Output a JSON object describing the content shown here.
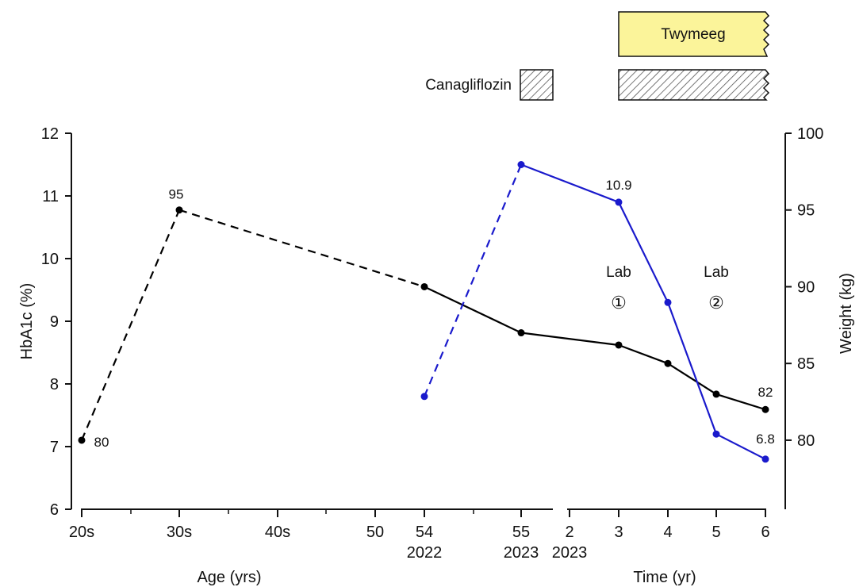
{
  "chart_data": {
    "type": "line",
    "left_axis": {
      "label": "HbA1c (%)",
      "range": [
        6,
        12
      ],
      "ticks": [
        "6",
        "7",
        "8",
        "9",
        "10",
        "11",
        "12"
      ]
    },
    "right_axis": {
      "label": "Weight (kg)",
      "range": [
        75.5,
        100
      ],
      "ticks": [
        "80",
        "85",
        "90",
        "95",
        "100"
      ]
    },
    "x_axis": {
      "segments": [
        {
          "title": "Age (yrs)",
          "title_color": "#1a1aa6",
          "ticks": [
            "20s",
            "30s",
            "40s",
            "50",
            "54",
            "55"
          ],
          "tick_sublabels": {
            "54": "2022",
            "55": "2023"
          }
        },
        {
          "title": "Time (yr)",
          "title_color": "#1a1aa6",
          "ticks": [
            "2",
            "3",
            "4",
            "5",
            "6"
          ],
          "tick_sublabels": {
            "2": "2023"
          }
        }
      ]
    },
    "series": [
      {
        "color": "#000000",
        "axis": "right",
        "points": [
          {
            "x": "20s",
            "y": 80,
            "label": "80",
            "style": "dashed"
          },
          {
            "x": "30s",
            "y": 95,
            "label": "95",
            "style": "dashed"
          },
          {
            "x": "54",
            "y": 90,
            "style": "solid"
          },
          {
            "x": "55",
            "y": 87
          },
          {
            "x": "3",
            "y": 86.2
          },
          {
            "x": "4",
            "y": 85
          },
          {
            "x": "5",
            "y": 83
          },
          {
            "x": "6",
            "y": 82,
            "label": "82"
          }
        ]
      },
      {
        "color": "#1a1acc",
        "axis": "left",
        "points": [
          {
            "x": "54",
            "y": 7.8,
            "style": "dashed"
          },
          {
            "x": "55",
            "y": 11.5,
            "style": "solid"
          },
          {
            "x": "3",
            "y": 10.9,
            "label": "10.9"
          },
          {
            "x": "4",
            "y": 9.3
          },
          {
            "x": "5",
            "y": 7.2
          },
          {
            "x": "6",
            "y": 6.8,
            "label": "6.8"
          }
        ]
      }
    ],
    "annotations": [
      {
        "text": "Lab",
        "symbol": "①",
        "at": "3"
      },
      {
        "text": "Lab",
        "symbol": "②",
        "at": "5"
      }
    ],
    "treatments": [
      {
        "name": "Twymeeg",
        "fill": "#fbf49a",
        "row": "top"
      },
      {
        "name": "Canagliflozin",
        "fill": "hatched",
        "row": "bottom"
      }
    ]
  }
}
